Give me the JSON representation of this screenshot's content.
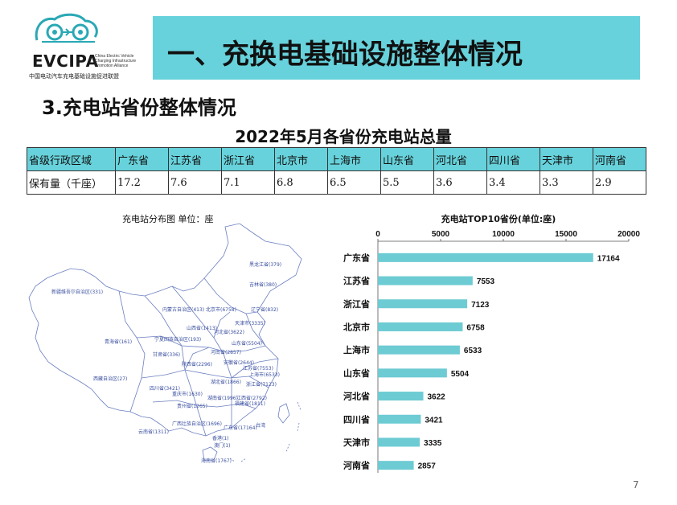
{
  "logo": {
    "brand": "EVCIPA",
    "subtitle_en": "China Electric Vehicle Charging Infrastructure Promotion Alliance",
    "subtitle_cn": "中国电动汽车充电基础设施促进联盟",
    "color": "#2aa8b5"
  },
  "header": {
    "title": "一、充换电基础设施整体情况",
    "banner_color": "#67d2db"
  },
  "section": {
    "heading_number": "3.",
    "heading_text": "充电站省份整体情况"
  },
  "table": {
    "title": "2022年5月各省份充电站总量",
    "header_label": "省级行政区域",
    "row_label": "保有量（千座）",
    "provinces": [
      "广东省",
      "江苏省",
      "浙江省",
      "北京市",
      "上海市",
      "山东省",
      "河北省",
      "四川省",
      "天津市",
      "河南省"
    ],
    "values": [
      "17.2",
      "7.6",
      "7.1",
      "6.8",
      "6.5",
      "5.5",
      "3.6",
      "3.4",
      "3.3",
      "2.9"
    ]
  },
  "map": {
    "title": "充电站分布图   单位：座",
    "labels": [
      {
        "text": "黑龙江省(379)"
      },
      {
        "text": "吉林省(380)"
      },
      {
        "text": "新疆维吾尔自治区(331)"
      },
      {
        "text": "内蒙古自治区(413)"
      },
      {
        "text": "北京市(6758)"
      },
      {
        "text": "辽宁省(832)"
      },
      {
        "text": "天津市(3335)"
      },
      {
        "text": "山西省(1413)"
      },
      {
        "text": "河北省(3622)"
      },
      {
        "text": "宁夏回族自治区(193)"
      },
      {
        "text": "山东省(5504)"
      },
      {
        "text": "青海省(161)"
      },
      {
        "text": "甘肃省(336)"
      },
      {
        "text": "河南省(2857)"
      },
      {
        "text": "陕西省(2296)"
      },
      {
        "text": "安徽省(2644)"
      },
      {
        "text": "江苏省(7553)"
      },
      {
        "text": "上海市(6533)"
      },
      {
        "text": "西藏自治区(27)"
      },
      {
        "text": "湖北省(1866)"
      },
      {
        "text": "浙江省(7123)"
      },
      {
        "text": "四川省(3421)"
      },
      {
        "text": "重庆市(1630)"
      },
      {
        "text": "湖南省(1996)"
      },
      {
        "text": "江西省(2792)"
      },
      {
        "text": "贵州省(1265)"
      },
      {
        "text": "福建省(1811)"
      },
      {
        "text": "云南省(1311)"
      },
      {
        "text": "广西壮族自治区(1696)"
      },
      {
        "text": "广东省(17164)"
      },
      {
        "text": "台湾"
      },
      {
        "text": "香港(1)"
      },
      {
        "text": "澳门(1)"
      },
      {
        "text": "海南省(1767)"
      }
    ]
  },
  "chart_data": {
    "type": "bar",
    "orientation": "horizontal",
    "title": "充电站TOP10省份(单位:座)",
    "categories": [
      "广东省",
      "江苏省",
      "浙江省",
      "北京市",
      "上海市",
      "山东省",
      "河北省",
      "四川省",
      "天津市",
      "河南省"
    ],
    "values": [
      17164,
      7553,
      7123,
      6758,
      6533,
      5504,
      3622,
      3421,
      3335,
      2857
    ],
    "xlim": [
      0,
      20000
    ],
    "xticks": [
      "0",
      "5000",
      "10000",
      "15000",
      "20000"
    ],
    "axis_position": "top",
    "grid": false,
    "bar_color": "#6dcbd3"
  },
  "footer": {
    "page_number": "7"
  }
}
